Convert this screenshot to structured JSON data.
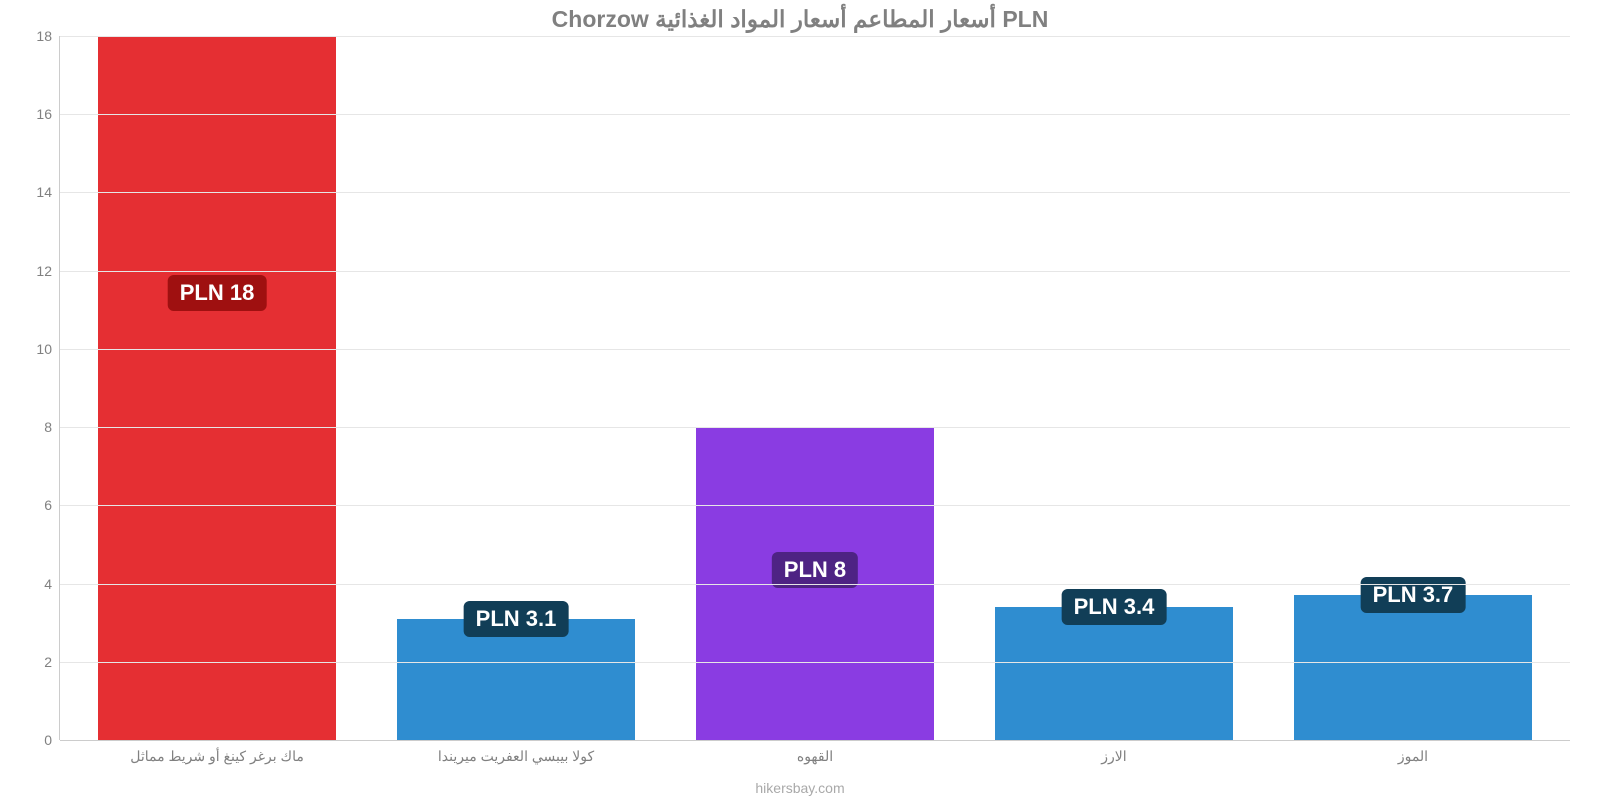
{
  "chart": {
    "type": "bar",
    "title": "PLN أسعار المطاعم أسعار المواد الغذائية Chorzow",
    "title_color": "#808080",
    "title_fontsize": 23,
    "background_color": "#ffffff",
    "grid_color": "#e6e6e6",
    "axis_color": "#cccccc",
    "tick_label_color": "#808080",
    "tick_fontsize": 14,
    "ylim": [
      0,
      18
    ],
    "yticks": [
      0,
      2,
      4,
      6,
      8,
      10,
      12,
      14,
      16,
      18
    ],
    "bar_width_pct": 15.8,
    "bar_gap_pct": 4.0,
    "value_label_fontsize": 22,
    "watermark": "hikersbay.com",
    "watermark_color": "#a9a9a9",
    "categories": [
      {
        "label": "ماك برغر كينغ أو شريط مماثل",
        "value": 18,
        "value_label": "PLN 18",
        "bar_color": "#e52f33",
        "badge_bg": "#9f1010",
        "badge_offset_from_top_pct": 34
      },
      {
        "label": "كولا بيبسي العفريت ميريندا",
        "value": 3.1,
        "value_label": "PLN 3.1",
        "bar_color": "#2f8dd0",
        "badge_bg": "#113e57",
        "badge_offset_from_top_pct": -3
      },
      {
        "label": "القهوه",
        "value": 8,
        "value_label": "PLN 8",
        "bar_color": "#8a3ce2",
        "badge_bg": "#4e2384",
        "badge_offset_from_top_pct": 40
      },
      {
        "label": "الارز",
        "value": 3.4,
        "value_label": "PLN 3.4",
        "bar_color": "#2f8dd0",
        "badge_bg": "#113e57",
        "badge_offset_from_top_pct": -3
      },
      {
        "label": "الموز",
        "value": 3.7,
        "value_label": "PLN 3.7",
        "bar_color": "#2f8dd0",
        "badge_bg": "#113e57",
        "badge_offset_from_top_pct": -3
      }
    ]
  }
}
